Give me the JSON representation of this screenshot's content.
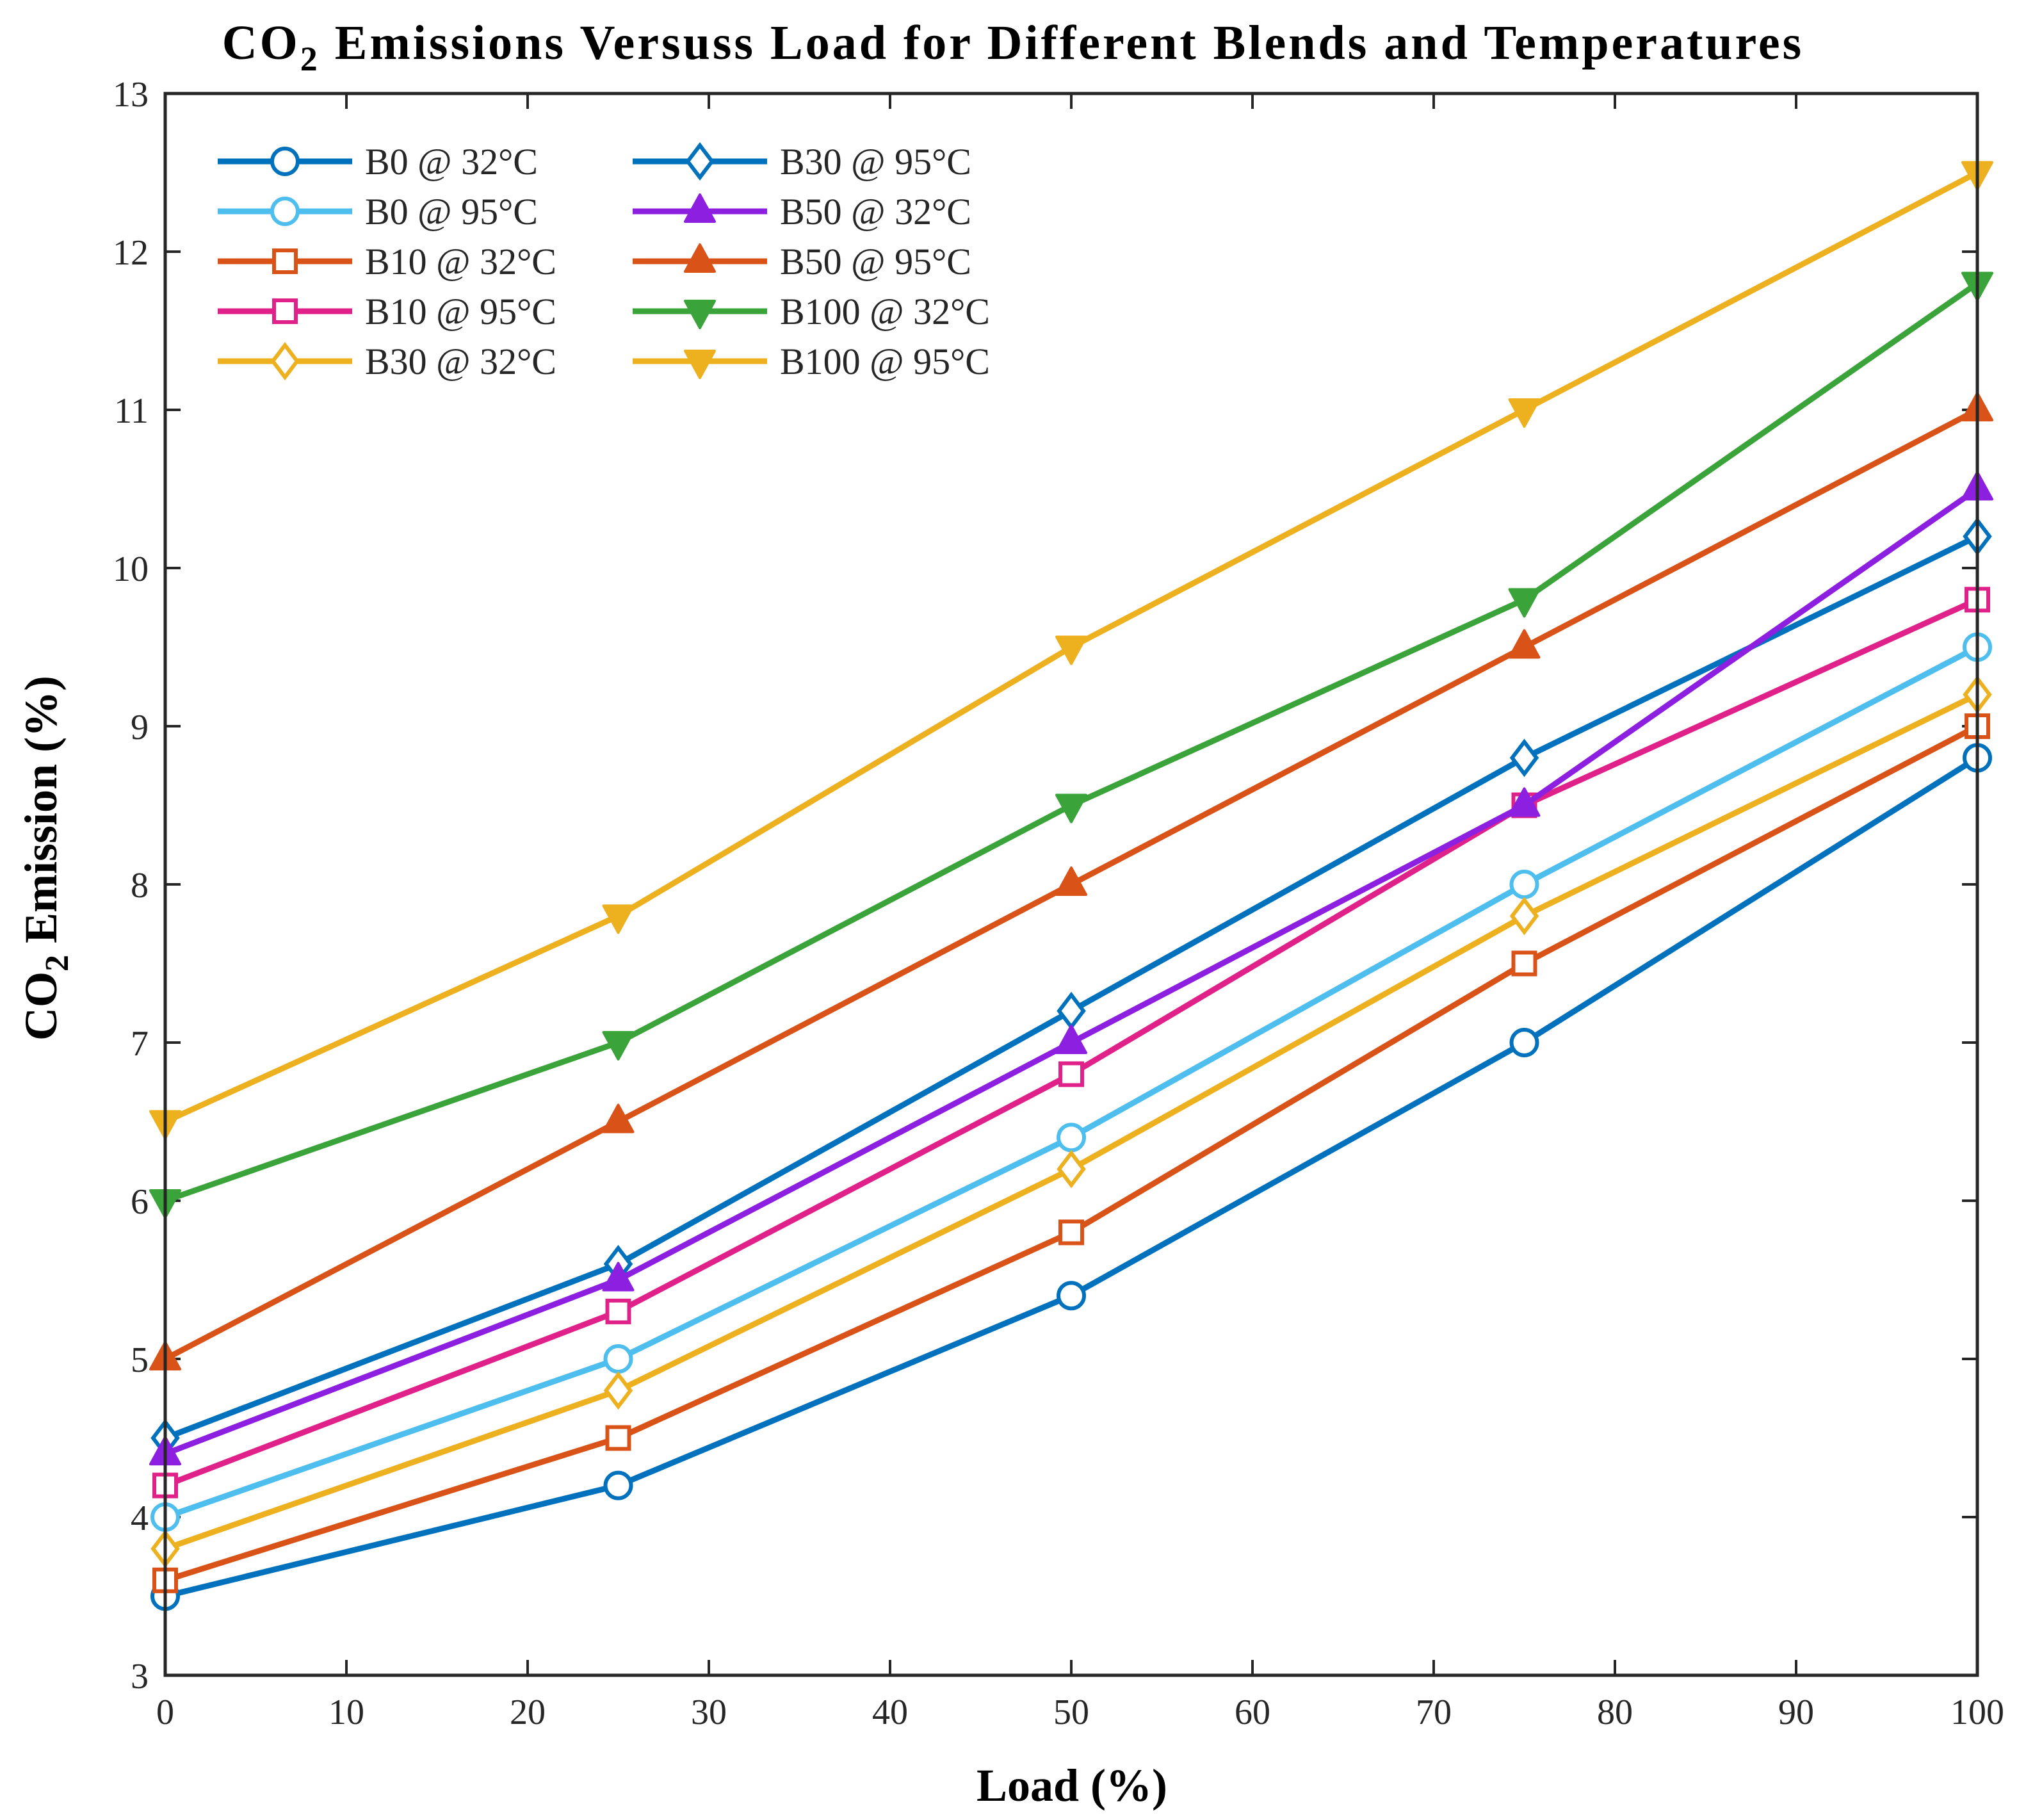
{
  "chart_data": {
    "type": "line",
    "title_main": "CO",
    "title_sub": "2",
    "title_rest": " Emissions Versuss Load for Different Blends and Temperatures",
    "xlabel": "Load (%)",
    "ylabel_main": "CO",
    "ylabel_sub": "2",
    "ylabel_rest": " Emission (%)",
    "xlim": [
      0,
      100
    ],
    "ylim": [
      3,
      13
    ],
    "xticks": [
      "0",
      "10",
      "20",
      "30",
      "40",
      "50",
      "60",
      "70",
      "80",
      "90",
      "100"
    ],
    "yticks": [
      "3",
      "4",
      "5",
      "6",
      "7",
      "8",
      "9",
      "10",
      "11",
      "12",
      "13"
    ],
    "grid": false,
    "legend_position": "top-left",
    "x": [
      0,
      25,
      50,
      75,
      100
    ],
    "series": [
      {
        "name": "B0 @ 32°C",
        "values": [
          3.5,
          4.2,
          5.4,
          7.0,
          8.8
        ],
        "color": "#0072BD",
        "marker": "circle"
      },
      {
        "name": "B0 @ 95°C",
        "values": [
          4.0,
          5.0,
          6.4,
          8.0,
          9.5
        ],
        "color": "#4DBEEE",
        "marker": "circle"
      },
      {
        "name": "B10 @ 32°C",
        "values": [
          3.6,
          4.5,
          5.8,
          7.5,
          9.0
        ],
        "color": "#D95319",
        "marker": "square"
      },
      {
        "name": "B10 @ 95°C",
        "values": [
          4.2,
          5.3,
          6.8,
          8.5,
          9.8
        ],
        "color": "#E0218A",
        "marker": "square"
      },
      {
        "name": "B30 @ 32°C",
        "values": [
          3.8,
          4.8,
          6.2,
          7.8,
          9.2
        ],
        "color": "#EDB120",
        "marker": "diamond"
      },
      {
        "name": "B30 @ 95°C",
        "values": [
          4.5,
          5.6,
          7.2,
          8.8,
          10.2
        ],
        "color": "#0072BD",
        "marker": "diamond"
      },
      {
        "name": "B50 @ 32°C",
        "values": [
          4.4,
          5.5,
          7.0,
          8.5,
          10.5
        ],
        "color": "#8C1FE0",
        "marker": "triangle-up"
      },
      {
        "name": "B50 @ 95°C",
        "values": [
          5.0,
          6.5,
          8.0,
          9.5,
          11.0
        ],
        "color": "#D95319",
        "marker": "triangle-up"
      },
      {
        "name": "B100 @ 32°C",
        "values": [
          6.0,
          7.0,
          8.5,
          9.8,
          11.8
        ],
        "color": "#3AA33A",
        "marker": "triangle-down"
      },
      {
        "name": "B100 @ 95°C",
        "values": [
          6.5,
          7.8,
          9.5,
          11.0,
          12.5
        ],
        "color": "#EDB120",
        "marker": "triangle-down"
      }
    ]
  }
}
